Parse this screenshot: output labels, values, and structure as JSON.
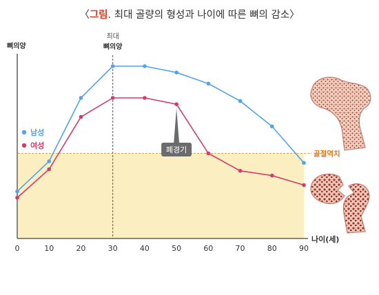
{
  "title": {
    "open": "〈",
    "accent": "그림",
    "rest": ". 최대 골량의 형성과 나이에 따른 뼈의 감소",
    "close": "〉"
  },
  "colors": {
    "male": "#4fa3f0",
    "female": "#d7396a",
    "accent": "#e03c1f",
    "fracture_fill": "#fbefc2",
    "fracture_line": "#e3a63c",
    "fracture_label": "#e07a1a",
    "callout_bg": "#6b6b6b"
  },
  "chart_data": {
    "type": "line",
    "title": "최대 골량의 형성과 나이에 따른 뼈의 감소",
    "xlabel": "나이(세)",
    "ylabel": "뼈의양",
    "x": [
      0,
      10,
      20,
      30,
      40,
      50,
      60,
      70,
      80,
      90
    ],
    "xlim": [
      0,
      90
    ],
    "ylim": [
      0,
      100
    ],
    "series": [
      {
        "name": "남성",
        "color": "#4fa3f0",
        "values": [
          21,
          40,
          80,
          100,
          100,
          96,
          89,
          78,
          62,
          39
        ]
      },
      {
        "name": "여성",
        "color": "#d7396a",
        "values": [
          17,
          35,
          68,
          80,
          80,
          76,
          45,
          34,
          31,
          25
        ]
      }
    ],
    "legend_position": "left",
    "peak": {
      "x": 30,
      "label_line1": "최대",
      "label_line2": "뼈의양"
    },
    "fracture_threshold": {
      "y": 45,
      "label": "골절역치"
    },
    "annotation": {
      "label": "폐경기",
      "x": 50
    },
    "grid": false
  }
}
